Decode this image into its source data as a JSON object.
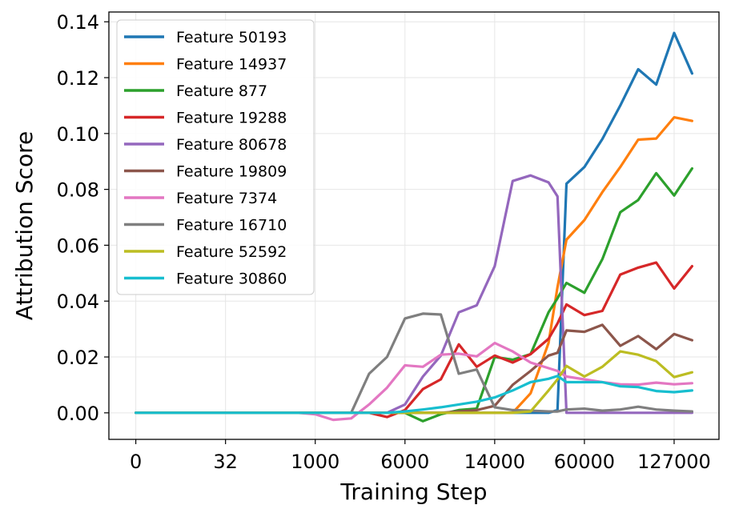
{
  "chart_data": {
    "type": "line",
    "xlabel": "Training Step",
    "ylabel": "Attribution Score",
    "ylim": [
      -0.0095,
      0.1435
    ],
    "grid": true,
    "legend_position": "top-left",
    "x_ticks": [
      {
        "pos": 0,
        "label": "0"
      },
      {
        "pos": 5,
        "label": "32"
      },
      {
        "pos": 10,
        "label": "1000"
      },
      {
        "pos": 15,
        "label": "6000"
      },
      {
        "pos": 20,
        "label": "14000"
      },
      {
        "pos": 25,
        "label": "60000"
      },
      {
        "pos": 30,
        "label": "127000"
      }
    ],
    "y_ticks": [
      0.0,
      0.02,
      0.04,
      0.06,
      0.08,
      0.1,
      0.12,
      0.14
    ],
    "y_tick_labels": [
      "0.00",
      "0.02",
      "0.04",
      "0.06",
      "0.08",
      "0.10",
      "0.12",
      "0.14"
    ],
    "x": [
      0,
      1,
      2,
      3,
      4,
      5,
      6,
      7,
      8,
      9,
      10,
      11,
      12,
      13,
      14,
      15,
      16,
      17,
      18,
      19,
      20,
      21,
      22,
      23,
      23.5,
      24,
      25,
      26,
      27,
      28,
      29,
      30,
      31
    ],
    "series": [
      {
        "name": "Feature 50193",
        "color": "#1f77b4",
        "values": [
          0,
          0,
          0,
          0,
          0,
          0,
          0,
          0,
          0,
          0,
          0,
          0,
          0,
          0,
          0,
          0,
          0,
          0,
          0,
          0,
          0,
          0,
          0,
          0,
          0.001,
          0.082,
          0.088,
          0.098,
          0.11,
          0.123,
          0.1175,
          0.136,
          0.1215
        ]
      },
      {
        "name": "Feature 14937",
        "color": "#ff7f0e",
        "values": [
          0,
          0,
          0,
          0,
          0,
          0,
          0,
          0,
          0,
          0,
          0,
          0,
          0,
          0,
          0,
          0,
          0,
          0,
          0,
          0,
          0,
          0,
          0.007,
          0.025,
          0.045,
          0.062,
          0.069,
          0.079,
          0.088,
          0.0978,
          0.0982,
          0.1058,
          0.1045
        ]
      },
      {
        "name": "Feature 877",
        "color": "#2ca02c",
        "values": [
          0,
          0,
          0,
          0,
          0,
          0,
          0,
          0,
          0,
          0,
          0,
          0,
          0,
          0,
          0,
          0,
          -0.003,
          -0.0005,
          0.001,
          0.0015,
          0.02,
          0.019,
          0.021,
          0.036,
          0.041,
          0.0465,
          0.043,
          0.055,
          0.0718,
          0.0762,
          0.0858,
          0.0778,
          0.0875
        ]
      },
      {
        "name": "Feature 19288",
        "color": "#d62728",
        "values": [
          0,
          0,
          0,
          0,
          0,
          0,
          0,
          0,
          0,
          0,
          0,
          0,
          0,
          0,
          -0.0015,
          0.001,
          0.0085,
          0.012,
          0.0245,
          0.0165,
          0.0205,
          0.018,
          0.021,
          0.0265,
          0.032,
          0.0388,
          0.035,
          0.0365,
          0.0495,
          0.052,
          0.0538,
          0.0445,
          0.0525
        ]
      },
      {
        "name": "Feature 80678",
        "color": "#9467bd",
        "values": [
          0,
          0,
          0,
          0,
          0,
          0,
          0,
          0,
          0,
          0,
          0,
          0,
          0,
          0,
          0,
          0.003,
          0.013,
          0.0205,
          0.036,
          0.0385,
          0.0525,
          0.083,
          0.085,
          0.0825,
          0.0775,
          0,
          0,
          0,
          0,
          0,
          0,
          0,
          0
        ]
      },
      {
        "name": "Feature 19809",
        "color": "#8c564b",
        "values": [
          0,
          0,
          0,
          0,
          0,
          0,
          0,
          0,
          0,
          0,
          0,
          0,
          0,
          0,
          0,
          0,
          0,
          0,
          0.0005,
          0.001,
          0.0025,
          0.01,
          0.015,
          0.0205,
          0.0215,
          0.0295,
          0.029,
          0.0315,
          0.024,
          0.0275,
          0.0228,
          0.0282,
          0.026
        ]
      },
      {
        "name": "Feature 7374",
        "color": "#e377c2",
        "values": [
          0,
          0,
          0,
          0,
          0,
          0,
          0,
          0,
          0,
          0,
          -0.0005,
          -0.0025,
          -0.002,
          0.003,
          0.009,
          0.017,
          0.0165,
          0.0208,
          0.0212,
          0.0202,
          0.025,
          0.022,
          0.018,
          0.016,
          0.015,
          0.013,
          0.012,
          0.011,
          0.0102,
          0.0101,
          0.0108,
          0.0102,
          0.0106
        ]
      },
      {
        "name": "Feature 16710",
        "color": "#7f7f7f",
        "values": [
          0,
          0,
          0,
          0,
          0,
          0,
          0,
          0,
          0,
          0,
          0,
          0,
          0,
          0.014,
          0.02,
          0.0338,
          0.0355,
          0.0352,
          0.014,
          0.0155,
          0.002,
          0.001,
          0.0008,
          0.0005,
          0.0005,
          0.0012,
          0.0015,
          0.0008,
          0.0012,
          0.0022,
          0.0012,
          0.0008,
          0.0005
        ]
      },
      {
        "name": "Feature 52592",
        "color": "#bcbd22",
        "values": [
          0,
          0,
          0,
          0,
          0,
          0,
          0,
          0,
          0,
          0,
          0,
          0,
          0,
          0,
          0,
          0,
          0,
          0,
          0,
          0,
          0,
          0,
          0.0005,
          0.008,
          0.012,
          0.0168,
          0.013,
          0.0165,
          0.022,
          0.0208,
          0.0185,
          0.0128,
          0.0145
        ]
      },
      {
        "name": "Feature 30860",
        "color": "#17becf",
        "values": [
          0,
          0,
          0,
          0,
          0,
          0,
          0,
          0,
          0,
          0,
          0,
          0,
          0,
          0,
          0,
          0.0005,
          0.0012,
          0.002,
          0.003,
          0.004,
          0.0055,
          0.008,
          0.011,
          0.0122,
          0.0132,
          0.011,
          0.011,
          0.011,
          0.0095,
          0.0092,
          0.0078,
          0.0074,
          0.008
        ]
      }
    ]
  }
}
